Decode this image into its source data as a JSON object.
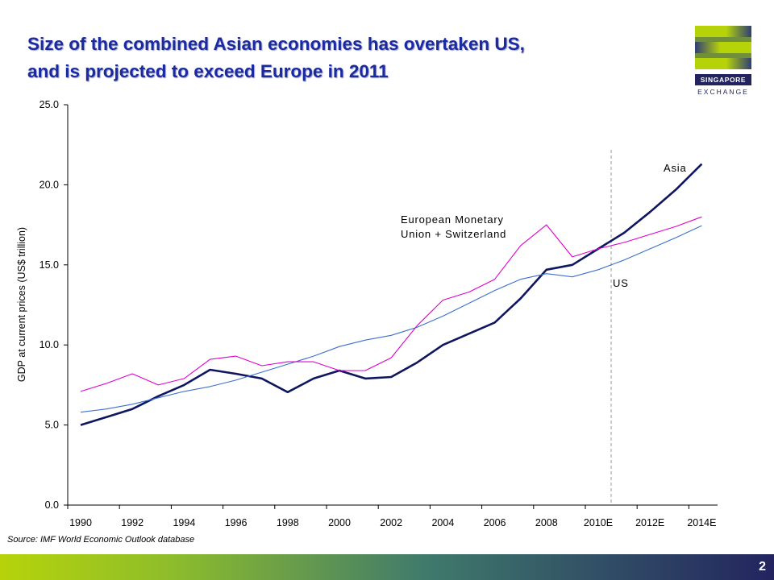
{
  "page": {
    "title_line1": "Size of the combined Asian economies has overtaken US,",
    "title_line2": "and is projected to exceed Europe in 2011",
    "logo_text": "SINGAPORE",
    "logo_subtext": "EXCHANGE",
    "source": "Source: IMF World Economic Outlook database",
    "page_number": "2",
    "colors": {
      "title": "#1c2aa0",
      "asia": "#0f1660",
      "us": "#3c6fd0",
      "europe": "#e000d0",
      "brand_dark": "#23245f",
      "brand_green": "#b6d30a"
    }
  },
  "chart_data": {
    "type": "line",
    "title": "",
    "xlabel": "",
    "ylabel": "GDP at current prices (US$ trillion)",
    "ylim": [
      0,
      25
    ],
    "yticks": [
      "0.0",
      "5.0",
      "10.0",
      "15.0",
      "20.0",
      "25.0"
    ],
    "x": [
      1990,
      1991,
      1992,
      1993,
      1994,
      1995,
      1996,
      1997,
      1998,
      1999,
      2000,
      2001,
      2002,
      2003,
      2004,
      2005,
      2006,
      2007,
      2008,
      2009,
      2010,
      2011,
      2012,
      2013,
      2014
    ],
    "xticks": [
      "1990",
      "1992",
      "1994",
      "1996",
      "1998",
      "2000",
      "2002",
      "2004",
      "2006",
      "2008",
      "2010E",
      "2012E",
      "2014E"
    ],
    "projection_start": "2010E",
    "series": [
      {
        "name": "Asia",
        "color": "#0f1660",
        "values": [
          5.0,
          5.5,
          6.0,
          6.8,
          7.5,
          8.45,
          8.2,
          7.9,
          7.05,
          7.9,
          8.4,
          7.9,
          8.0,
          8.9,
          10.0,
          10.7,
          11.4,
          12.9,
          14.7,
          15.0,
          16.0,
          17.0,
          18.3,
          19.7,
          21.3
        ]
      },
      {
        "name": "US",
        "color": "#3c6fd0",
        "values": [
          5.8,
          6.0,
          6.3,
          6.7,
          7.1,
          7.4,
          7.8,
          8.3,
          8.8,
          9.3,
          9.9,
          10.3,
          10.6,
          11.1,
          11.8,
          12.6,
          13.4,
          14.1,
          14.45,
          14.25,
          14.7,
          15.3,
          16.0,
          16.7,
          17.45
        ]
      },
      {
        "name": "European Monetary Union + Switzerland",
        "color": "#e000d0",
        "values": [
          7.1,
          7.6,
          8.2,
          7.5,
          7.9,
          9.1,
          9.3,
          8.7,
          8.95,
          8.95,
          8.4,
          8.4,
          9.2,
          11.2,
          12.8,
          13.3,
          14.1,
          16.2,
          17.5,
          15.5,
          16.0,
          16.4,
          16.9,
          17.4,
          18.0
        ]
      }
    ],
    "annotations": [
      {
        "label": "Asia",
        "series": "Asia"
      },
      {
        "label": "US",
        "series": "US"
      },
      {
        "label_lines": [
          "European Monetary",
          "Union + Switzerland"
        ],
        "series": "European Monetary Union + Switzerland"
      }
    ],
    "grid": false,
    "legend": "none"
  }
}
